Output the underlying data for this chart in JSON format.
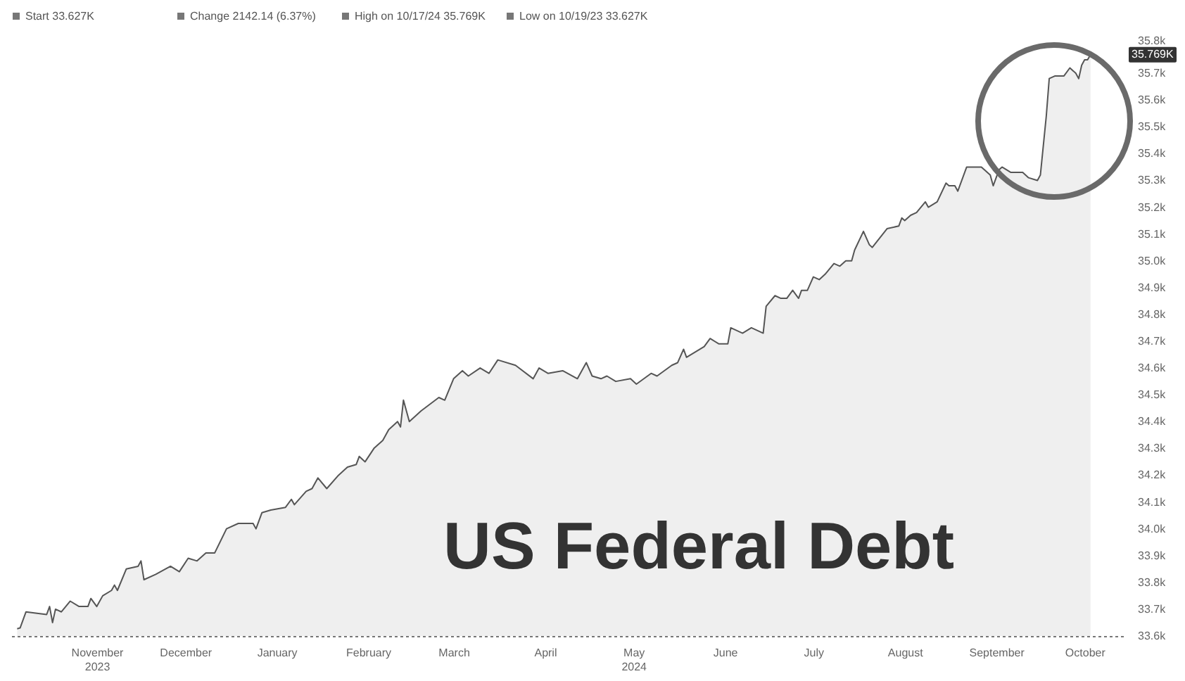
{
  "chart_data": {
    "type": "area",
    "title": "US Federal Debt",
    "annotations": [
      "Start 33.627K",
      "Change 2142.14 (6.37%)",
      "High on 10/17/24 35.769K",
      "Low on 10/19/23 33.627K",
      {
        "text": "35.769K",
        "y": 35.769
      }
    ],
    "x": [
      "2023-10-19",
      "2023-10-20",
      "2023-10-22",
      "2023-10-29",
      "2023-10-30",
      "2023-10-31",
      "2023-11-01",
      "2023-11-03",
      "2023-11-06",
      "2023-11-09",
      "2023-11-12",
      "2023-11-13",
      "2023-11-15",
      "2023-11-17",
      "2023-11-20",
      "2023-11-21",
      "2023-11-22",
      "2023-11-25",
      "2023-11-29",
      "2023-11-30",
      "2023-12-01",
      "2023-12-05",
      "2023-12-10",
      "2023-12-13",
      "2023-12-16",
      "2023-12-19",
      "2023-12-22",
      "2023-12-25",
      "2023-12-29",
      "2024-01-02",
      "2024-01-07",
      "2024-01-08",
      "2024-01-10",
      "2024-01-13",
      "2024-01-18",
      "2024-01-20",
      "2024-01-21",
      "2024-01-25",
      "2024-01-27",
      "2024-01-29",
      "2024-02-01",
      "2024-02-05",
      "2024-02-08",
      "2024-02-11",
      "2024-02-12",
      "2024-02-14",
      "2024-02-17",
      "2024-02-20",
      "2024-02-22",
      "2024-02-25",
      "2024-02-26",
      "2024-02-27",
      "2024-02-29",
      "2024-03-04",
      "2024-03-10",
      "2024-03-12",
      "2024-03-15",
      "2024-03-18",
      "2024-03-20",
      "2024-03-24",
      "2024-03-27",
      "2024-03-30",
      "2024-04-05",
      "2024-04-11",
      "2024-04-13",
      "2024-04-16",
      "2024-04-21",
      "2024-04-26",
      "2024-04-29",
      "2024-05-01",
      "2024-05-04",
      "2024-05-06",
      "2024-05-09",
      "2024-05-14",
      "2024-05-16",
      "2024-05-21",
      "2024-05-23",
      "2024-05-28",
      "2024-05-30",
      "2024-06-01",
      "2024-06-02",
      "2024-06-08",
      "2024-06-10",
      "2024-06-13",
      "2024-06-16",
      "2024-06-17",
      "2024-06-21",
      "2024-06-24",
      "2024-06-28",
      "2024-06-29",
      "2024-07-02",
      "2024-07-04",
      "2024-07-06",
      "2024-07-08",
      "2024-07-10",
      "2024-07-11",
      "2024-07-13",
      "2024-07-15",
      "2024-07-17",
      "2024-07-19",
      "2024-07-22",
      "2024-07-24",
      "2024-07-26",
      "2024-07-28",
      "2024-07-29",
      "2024-08-01",
      "2024-08-03",
      "2024-08-04",
      "2024-08-09",
      "2024-08-13",
      "2024-08-14",
      "2024-08-15",
      "2024-08-17",
      "2024-08-19",
      "2024-08-22",
      "2024-08-23",
      "2024-08-26",
      "2024-08-29",
      "2024-08-30",
      "2024-09-01",
      "2024-09-02",
      "2024-09-05",
      "2024-09-10",
      "2024-09-13",
      "2024-09-14",
      "2024-09-16",
      "2024-09-17",
      "2024-09-20",
      "2024-09-24",
      "2024-09-26",
      "2024-09-29",
      "2024-09-30",
      "2024-10-02",
      "2024-10-03",
      "2024-10-05",
      "2024-10-08",
      "2024-10-10",
      "2024-10-12",
      "2024-10-13",
      "2024-10-14",
      "2024-10-15",
      "2024-10-16",
      "2024-10-17"
    ],
    "series": [
      {
        "color": "#555555",
        "values": [
          33.627,
          33.63,
          33.69,
          33.68,
          33.71,
          33.65,
          33.7,
          33.69,
          33.73,
          33.71,
          33.71,
          33.74,
          33.71,
          33.75,
          33.77,
          33.79,
          33.77,
          33.85,
          33.86,
          33.88,
          33.81,
          33.83,
          33.86,
          33.84,
          33.89,
          33.88,
          33.91,
          33.91,
          34.0,
          34.02,
          34.02,
          34.0,
          34.06,
          34.07,
          34.08,
          34.11,
          34.09,
          34.14,
          34.15,
          34.19,
          34.15,
          34.2,
          34.23,
          34.24,
          34.27,
          34.25,
          34.3,
          34.33,
          34.37,
          34.4,
          34.38,
          34.48,
          34.4,
          34.44,
          34.49,
          34.48,
          34.56,
          34.59,
          34.57,
          34.6,
          34.58,
          34.63,
          34.61,
          34.56,
          34.6,
          34.58,
          34.59,
          34.56,
          34.62,
          34.57,
          34.56,
          34.57,
          34.55,
          34.56,
          34.54,
          34.58,
          34.57,
          34.61,
          34.62,
          34.67,
          34.64,
          34.68,
          34.71,
          34.69,
          34.69,
          34.75,
          34.73,
          34.75,
          34.73,
          34.83,
          34.87,
          34.86,
          34.86,
          34.89,
          34.86,
          34.89,
          34.89,
          34.94,
          34.93,
          34.95,
          34.99,
          34.98,
          35.0,
          35.0,
          35.04,
          35.11,
          35.06,
          35.05,
          35.12,
          35.13,
          35.16,
          35.15,
          35.17,
          35.18,
          35.22,
          35.2,
          35.22,
          35.29,
          35.28,
          35.28,
          35.26,
          35.35,
          35.35,
          35.32,
          35.28,
          35.34,
          35.35,
          35.33,
          35.33,
          35.31,
          35.3,
          35.32,
          35.54,
          35.68,
          35.69,
          35.69,
          35.72,
          35.7,
          35.68,
          35.73,
          35.75,
          35.75,
          35.769
        ]
      }
    ],
    "xlim": [
      "2023-10-17",
      "2024-10-29"
    ],
    "xticks": [
      {
        "value": "2023-11-15",
        "label": "November\n2023"
      },
      {
        "value": "2023-12-15",
        "label": "December"
      },
      {
        "value": "2024-01-15",
        "label": "January"
      },
      {
        "value": "2024-02-15",
        "label": "February"
      },
      {
        "value": "2024-03-15",
        "label": "March"
      },
      {
        "value": "2024-04-15",
        "label": "April"
      },
      {
        "value": "2024-05-15",
        "label": "May\n2024"
      },
      {
        "value": "2024-06-15",
        "label": "June"
      },
      {
        "value": "2024-07-15",
        "label": "July"
      },
      {
        "value": "2024-08-15",
        "label": "August"
      },
      {
        "value": "2024-09-15",
        "label": "September"
      },
      {
        "value": "2024-10-15",
        "label": "October"
      }
    ],
    "ylim": [
      33.6,
      35.8
    ],
    "yticks": [
      {
        "value": 33.6,
        "label": "33.6k"
      },
      {
        "value": 33.7,
        "label": "33.7k"
      },
      {
        "value": 33.8,
        "label": "33.8k"
      },
      {
        "value": 33.9,
        "label": "33.9k"
      },
      {
        "value": 34.0,
        "label": "34.0k"
      },
      {
        "value": 34.1,
        "label": "34.1k"
      },
      {
        "value": 34.2,
        "label": "34.2k"
      },
      {
        "value": 34.3,
        "label": "34.3k"
      },
      {
        "value": 34.4,
        "label": "34.4k"
      },
      {
        "value": 34.5,
        "label": "34.5k"
      },
      {
        "value": 34.6,
        "label": "34.6k"
      },
      {
        "value": 34.7,
        "label": "34.7k"
      },
      {
        "value": 34.8,
        "label": "34.8k"
      },
      {
        "value": 34.9,
        "label": "34.9k"
      },
      {
        "value": 35.0,
        "label": "35.0k"
      },
      {
        "value": 35.1,
        "label": "35.1k"
      },
      {
        "value": 35.2,
        "label": "35.2k"
      },
      {
        "value": 35.3,
        "label": "35.3k"
      },
      {
        "value": 35.4,
        "label": "35.4k"
      },
      {
        "value": 35.5,
        "label": "35.5k"
      },
      {
        "value": 35.6,
        "label": "35.6k"
      },
      {
        "value": 35.7,
        "label": "35.7k"
      },
      {
        "value": 35.8,
        "label": "35.8k"
      }
    ]
  }
}
